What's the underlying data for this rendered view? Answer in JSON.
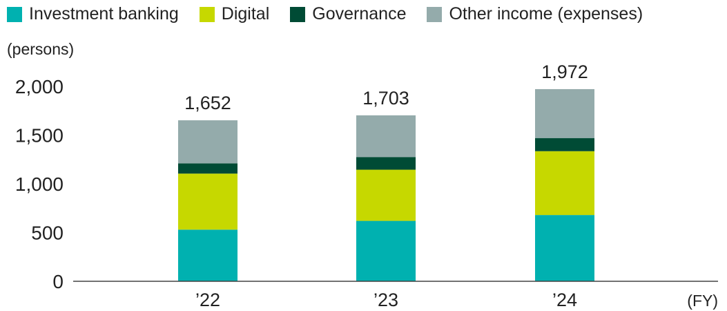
{
  "legend": {
    "items": [
      {
        "label": "Investment banking",
        "color": "#00b1b0"
      },
      {
        "label": "Digital",
        "color": "#c6d800"
      },
      {
        "label": "Governance",
        "color": "#004b35"
      },
      {
        "label": "Other income (expenses)",
        "color": "#94abab"
      }
    ]
  },
  "chart_data": {
    "type": "bar",
    "stacked": true,
    "unit_label": "(persons)",
    "x_unit": "(FY)",
    "categories": [
      "’22",
      "’23",
      "’24"
    ],
    "series": [
      {
        "name": "Investment banking",
        "color": "#00b1b0",
        "values": [
          530,
          620,
          680
        ]
      },
      {
        "name": "Digital",
        "color": "#c6d800",
        "values": [
          575,
          525,
          655
        ]
      },
      {
        "name": "Governance",
        "color": "#004b35",
        "values": [
          105,
          130,
          135
        ]
      },
      {
        "name": "Other income (expenses)",
        "color": "#94abab",
        "values": [
          442,
          428,
          502
        ]
      }
    ],
    "totals": [
      "1,652",
      "1,703",
      "1,972"
    ],
    "yticks": [
      0,
      500,
      1000,
      1500,
      2000
    ],
    "ytick_labels": [
      "0",
      "500",
      "1,000",
      "1,500",
      "2,000"
    ],
    "ylim": [
      0,
      2000
    ],
    "grid": false
  }
}
